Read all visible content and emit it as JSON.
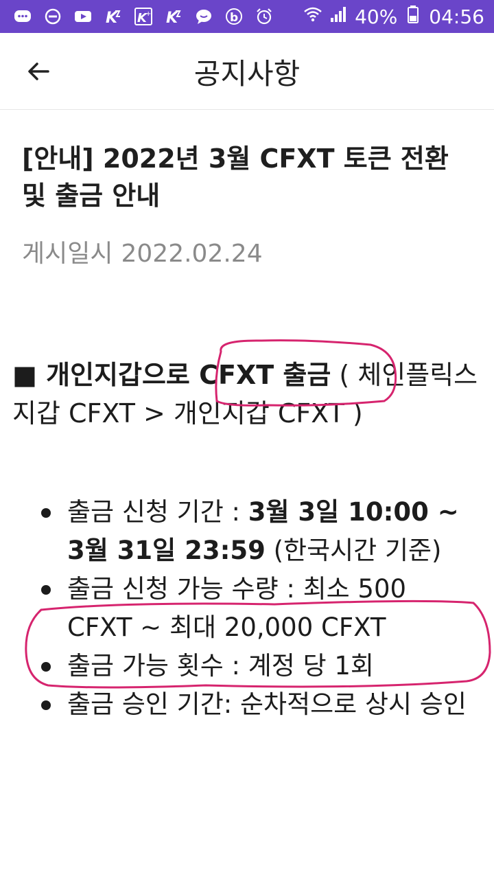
{
  "status_bar": {
    "icons": [
      "message-icon",
      "minus-circle-icon",
      "youtube-icon",
      "app-k-icon",
      "app-k-plus-icon",
      "app-k-icon",
      "chat-bubble-icon",
      "b-app-icon",
      "alarm-icon",
      "wifi-icon",
      "signal-icon",
      "battery-icon"
    ],
    "battery": "40%",
    "time": "04:56",
    "color": "#6a45c9"
  },
  "header": {
    "title": "공지사항"
  },
  "post": {
    "title": "[안내] 2022년 3월 CFXT 토큰 전환 및 출금 안내",
    "date_label": "게시일시",
    "date": "2022.02.24"
  },
  "section": {
    "prefix": "■ 개인지갑으로 ",
    "bold": "CFXT 출금",
    "suffix": " ( 체인플릭스 지갑 CFXT > 개인지갑 CFXT )"
  },
  "items": [
    {
      "label": "출금 신청 기간 : ",
      "bold": "3월 3일 10:00 ~ 3월 31일 23:59",
      "rest": " (한국시간 기준)"
    },
    {
      "label": "출금 신청 가능 수량 : 최소 500 CFXT ~ 최대 20,000 CFXT",
      "bold": "",
      "rest": ""
    },
    {
      "label": "출금 가능 횟수 : 계정 당 1회",
      "bold": "",
      "rest": ""
    },
    {
      "label": "출금 승인 기간: 순차적으로 상시 승인",
      "bold": "",
      "rest": ""
    }
  ],
  "annotation_color": "#d6246e"
}
